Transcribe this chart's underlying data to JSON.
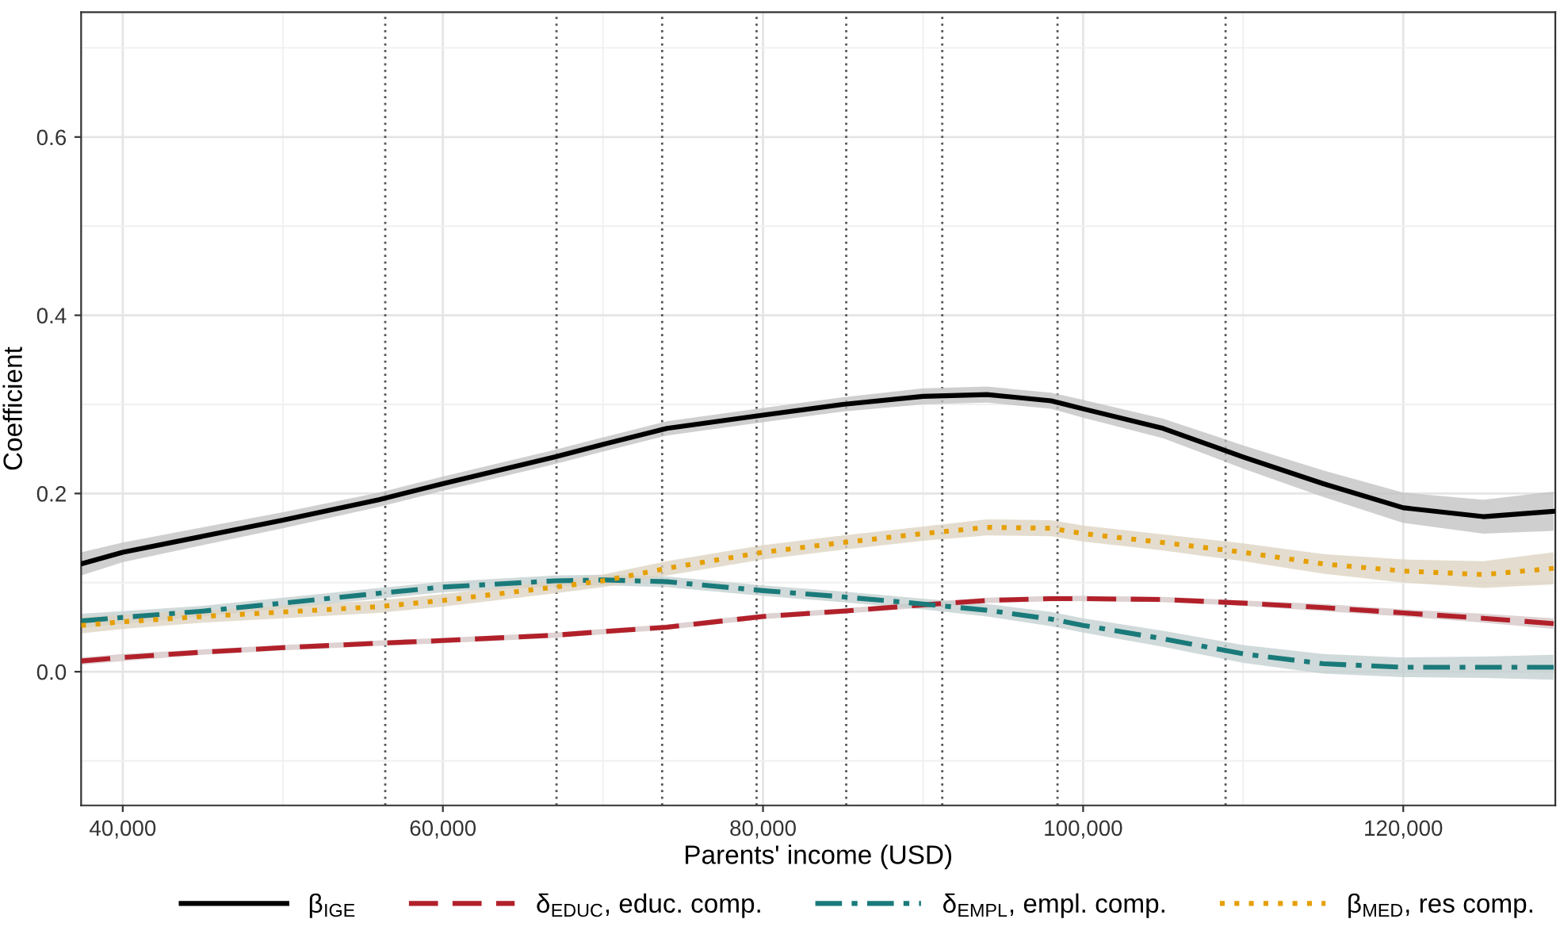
{
  "chart_data": {
    "type": "line",
    "xlabel": "Parents' income (USD)",
    "ylabel": "Coefficient",
    "x": [
      37400,
      40000,
      45000,
      50000,
      56000,
      60000,
      67000,
      70000,
      74000,
      80000,
      85000,
      90000,
      94000,
      98000,
      100000,
      105000,
      110000,
      115000,
      120000,
      125000,
      129400
    ],
    "series": [
      {
        "name": "β$_{IGE}$",
        "color": "#000000",
        "line_style": "solid",
        "values": [
          0.121,
          0.134,
          0.152,
          0.17,
          0.193,
          0.211,
          0.241,
          0.255,
          0.273,
          0.288,
          0.3,
          0.309,
          0.311,
          0.304,
          0.295,
          0.273,
          0.241,
          0.211,
          0.184,
          0.174,
          0.18
        ],
        "lower": [
          0.108,
          0.123,
          0.142,
          0.161,
          0.185,
          0.203,
          0.233,
          0.247,
          0.265,
          0.28,
          0.292,
          0.3,
          0.302,
          0.295,
          0.285,
          0.262,
          0.228,
          0.196,
          0.167,
          0.155,
          0.158
        ],
        "upper": [
          0.134,
          0.145,
          0.162,
          0.179,
          0.201,
          0.219,
          0.249,
          0.263,
          0.281,
          0.296,
          0.308,
          0.318,
          0.32,
          0.313,
          0.305,
          0.284,
          0.254,
          0.226,
          0.201,
          0.193,
          0.202
        ]
      },
      {
        "name": "δ$_{EDUC}$, educ. comp.",
        "color": "#b2202a",
        "line_style": "dashed",
        "values": [
          0.012,
          0.016,
          0.022,
          0.027,
          0.032,
          0.035,
          0.041,
          0.045,
          0.05,
          0.062,
          0.068,
          0.075,
          0.08,
          0.082,
          0.082,
          0.081,
          0.077,
          0.072,
          0.066,
          0.06,
          0.054
        ],
        "lower": [
          0.008,
          0.012,
          0.019,
          0.024,
          0.029,
          0.032,
          0.038,
          0.042,
          0.047,
          0.059,
          0.065,
          0.072,
          0.077,
          0.079,
          0.079,
          0.078,
          0.074,
          0.068,
          0.062,
          0.055,
          0.048
        ],
        "upper": [
          0.016,
          0.02,
          0.025,
          0.03,
          0.035,
          0.038,
          0.044,
          0.048,
          0.053,
          0.065,
          0.071,
          0.078,
          0.083,
          0.085,
          0.085,
          0.084,
          0.08,
          0.076,
          0.07,
          0.065,
          0.06
        ]
      },
      {
        "name": "δ$_{EMPL}$, empl. comp.",
        "color": "#1a7a7a",
        "line_style": "dashdot",
        "values": [
          0.057,
          0.061,
          0.068,
          0.077,
          0.088,
          0.095,
          0.102,
          0.103,
          0.101,
          0.091,
          0.084,
          0.076,
          0.069,
          0.059,
          0.052,
          0.037,
          0.02,
          0.009,
          0.005,
          0.005,
          0.005
        ],
        "lower": [
          0.049,
          0.054,
          0.062,
          0.071,
          0.082,
          0.089,
          0.096,
          0.097,
          0.095,
          0.085,
          0.078,
          0.07,
          0.062,
          0.051,
          0.044,
          0.028,
          0.01,
          -0.002,
          -0.006,
          -0.007,
          -0.009
        ],
        "upper": [
          0.065,
          0.068,
          0.074,
          0.083,
          0.094,
          0.101,
          0.108,
          0.109,
          0.107,
          0.097,
          0.09,
          0.082,
          0.076,
          0.067,
          0.06,
          0.046,
          0.03,
          0.02,
          0.016,
          0.017,
          0.019
        ]
      },
      {
        "name": "β$_{MED}$, res comp.",
        "color": "#e69f00",
        "line_style": "dotted",
        "values": [
          0.052,
          0.056,
          0.062,
          0.067,
          0.073,
          0.08,
          0.095,
          0.102,
          0.116,
          0.134,
          0.145,
          0.155,
          0.162,
          0.161,
          0.155,
          0.145,
          0.134,
          0.121,
          0.113,
          0.109,
          0.116
        ],
        "lower": [
          0.043,
          0.048,
          0.055,
          0.06,
          0.066,
          0.073,
          0.088,
          0.095,
          0.108,
          0.126,
          0.137,
          0.147,
          0.153,
          0.152,
          0.146,
          0.136,
          0.124,
          0.11,
          0.1,
          0.094,
          0.098
        ],
        "upper": [
          0.061,
          0.064,
          0.069,
          0.074,
          0.08,
          0.087,
          0.102,
          0.109,
          0.124,
          0.142,
          0.153,
          0.163,
          0.171,
          0.17,
          0.164,
          0.154,
          0.144,
          0.132,
          0.126,
          0.124,
          0.134
        ]
      }
    ],
    "xlim": [
      37400,
      129500
    ],
    "ylim": [
      -0.15,
      0.74
    ],
    "xticks": [
      {
        "value": 40000,
        "label": "40,000"
      },
      {
        "value": 60000,
        "label": "60,000"
      },
      {
        "value": 80000,
        "label": "80,000"
      },
      {
        "value": 100000,
        "label": "100,000"
      },
      {
        "value": 120000,
        "label": "120,000"
      }
    ],
    "yticks": [
      {
        "value": 0,
        "label": "0.0"
      },
      0.2,
      0.4,
      0.6
    ],
    "ref_lines": [
      {
        "axis": "x",
        "value": 56400,
        "color": "#555555",
        "line_style": "dotted"
      },
      {
        "axis": "x",
        "value": 67100,
        "color": "#555555",
        "line_style": "dotted"
      },
      {
        "axis": "x",
        "value": 73700,
        "color": "#555555",
        "line_style": "dotted"
      },
      {
        "axis": "x",
        "value": 79600,
        "color": "#555555",
        "line_style": "dotted"
      },
      {
        "axis": "x",
        "value": 85200,
        "color": "#555555",
        "line_style": "dotted"
      },
      {
        "axis": "x",
        "value": 91200,
        "color": "#555555",
        "line_style": "dotted"
      },
      {
        "axis": "x",
        "value": 98400,
        "color": "#555555",
        "line_style": "dotted"
      },
      {
        "axis": "x",
        "value": 108900,
        "color": "#555555",
        "line_style": "dotted"
      }
    ],
    "grid": true,
    "legend": "bottom",
    "marker": "none"
  }
}
